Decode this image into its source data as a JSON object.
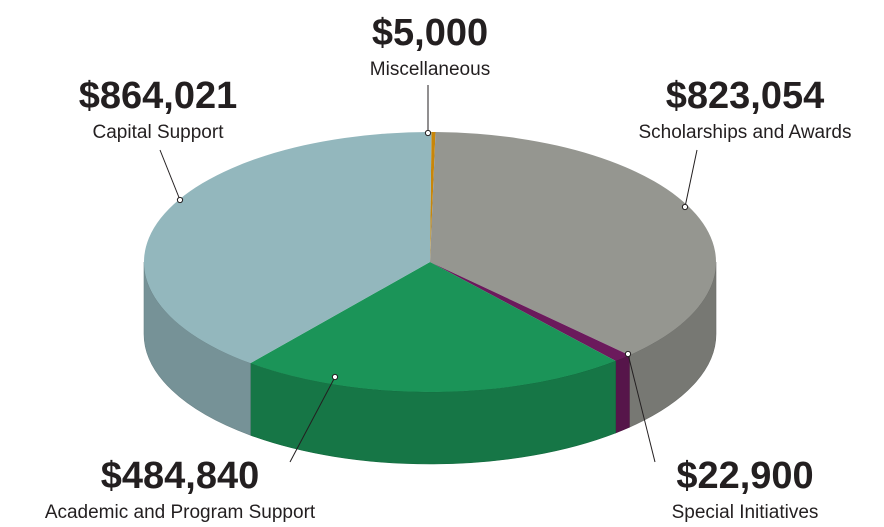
{
  "chart_data": {
    "type": "pie",
    "categories": [
      "Miscellaneous",
      "Scholarships and Awards",
      "Special Initiatives",
      "Academic and Program Support",
      "Capital Support"
    ],
    "values": [
      5000,
      823054,
      22900,
      484840,
      864021
    ],
    "value_labels": [
      "$5,000",
      "$823,054",
      "$22,900",
      "$484,840",
      "$864,021"
    ],
    "colors": [
      "#c8860a",
      "#959690",
      "#6b1a5c",
      "#1b9458",
      "#93b7bd"
    ]
  }
}
